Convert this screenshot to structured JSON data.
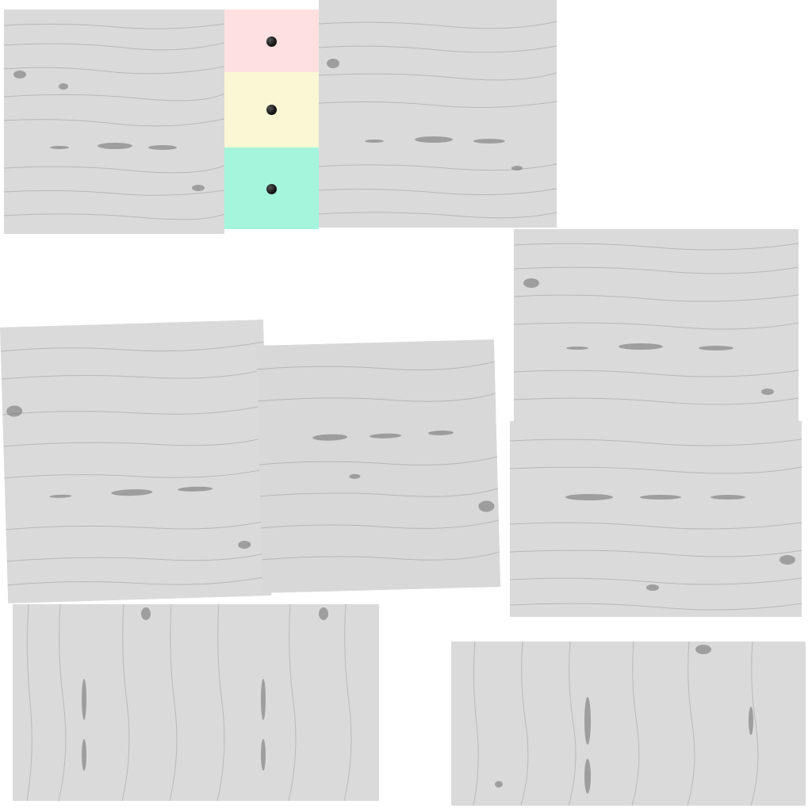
{
  "atlas": {
    "background_color": "#ffffff",
    "wood_base_color": "#d9d9d9",
    "wood_grain_color": "#8a8a8a",
    "wood_knot_color": "#5e5e5e",
    "patch_count": 8
  },
  "swatches": [
    {
      "name": "pink-swatch",
      "color": "#ffe0e0",
      "dot_color": "#1a1a1a"
    },
    {
      "name": "cream-swatch",
      "color": "#faf7d4",
      "dot_color": "#1a1a1a"
    },
    {
      "name": "mint-swatch",
      "color": "#a5f5dc",
      "dot_color": "#1a1a1a"
    }
  ]
}
